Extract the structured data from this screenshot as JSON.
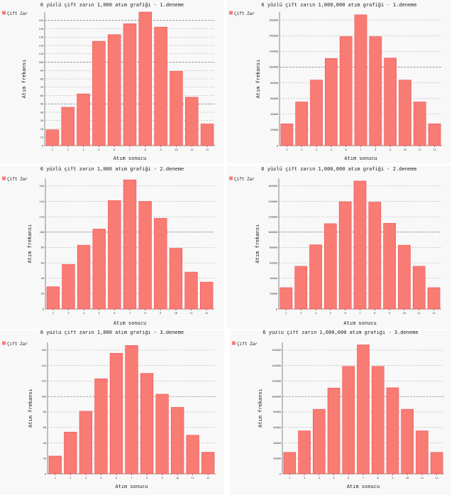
{
  "colors": {
    "bar": "#f87b74",
    "bar_border": "#f04f4f",
    "panel_bg": "#f8f8f8"
  },
  "chart_data": [
    {
      "type": "bar",
      "title": "6 yüzlü çift zarın 1,000 atım grafiği - 1.deneme",
      "xlabel": "Atım sonucu",
      "ylabel": "Atım frekansı",
      "legend": "Çift Zar",
      "legend_position": "top-left",
      "categories": [
        "2",
        "3",
        "4",
        "5",
        "6",
        "7",
        "8",
        "9",
        "10",
        "11",
        "12"
      ],
      "values": [
        19,
        46,
        62,
        125,
        133,
        146,
        160,
        142,
        89,
        58,
        26
      ],
      "ylim": [
        0,
        160
      ],
      "yticks": [
        0,
        10,
        20,
        30,
        40,
        50,
        60,
        70,
        80,
        90,
        100,
        110,
        120,
        130,
        140,
        150
      ],
      "ytick_labels": [
        "0",
        "10",
        "20",
        "30",
        "40",
        "50",
        "60",
        "70",
        "80",
        "90",
        "100",
        "110",
        "120",
        "130",
        "140",
        "150"
      ],
      "major_tick": 50,
      "grid": true
    },
    {
      "type": "bar",
      "title": "6 yüzlü çift zarın 1,000,000 atım grafiği - 1.deneme",
      "xlabel": "Atım sonucu",
      "ylabel": "Atım frekansı",
      "legend": "Çift Zar",
      "legend_position": "top-left",
      "categories": [
        "2",
        "3",
        "4",
        "5",
        "6",
        "7",
        "8",
        "9",
        "10",
        "11",
        "12"
      ],
      "values": [
        27800,
        55600,
        83500,
        111000,
        138800,
        166500,
        138800,
        111500,
        83500,
        55600,
        27800
      ],
      "ylim": [
        0,
        170000
      ],
      "yticks": [
        0,
        20000,
        40000,
        60000,
        80000,
        100000,
        120000,
        140000,
        160000
      ],
      "ytick_labels": [
        "0",
        "20000",
        "40000",
        "60000",
        "80000",
        "100000",
        "120000",
        "140000",
        "160000"
      ],
      "major_tick": 100000,
      "grid": true
    },
    {
      "type": "bar",
      "title": "6 yüzlü çift zarın 1,000 atım grafiği - 2.deneme",
      "xlabel": "Atım sonucu",
      "ylabel": "Atım frekansı",
      "legend": "Çift Zar",
      "legend_position": "top-left",
      "categories": [
        "2",
        "3",
        "4",
        "5",
        "6",
        "7",
        "8",
        "9",
        "10",
        "11",
        "12"
      ],
      "values": [
        29,
        58,
        83,
        104,
        141,
        168,
        140,
        118,
        79,
        48,
        35
      ],
      "ylim": [
        0,
        170
      ],
      "yticks": [
        0,
        20,
        40,
        60,
        80,
        100,
        120,
        140,
        160
      ],
      "ytick_labels": [
        "0",
        "20",
        "40",
        "60",
        "80",
        "100",
        "120",
        "140",
        "160"
      ],
      "major_tick": 100,
      "grid": true
    },
    {
      "type": "bar",
      "title": "6 yüzlü çift zarın 1,000,000 atım grafiği - 2.deneme",
      "xlabel": "Atım sonucu",
      "ylabel": "Atım frekansı",
      "legend": "Çift Zar",
      "legend_position": "top-left",
      "categories": [
        "2",
        "3",
        "4",
        "5",
        "6",
        "7",
        "8",
        "9",
        "10",
        "11",
        "12"
      ],
      "values": [
        27800,
        55600,
        83500,
        111000,
        139500,
        166500,
        139000,
        111500,
        83000,
        55600,
        27800
      ],
      "ylim": [
        0,
        170000
      ],
      "yticks": [
        0,
        20000,
        40000,
        60000,
        80000,
        100000,
        120000,
        140000,
        160000
      ],
      "ytick_labels": [
        "0",
        "20000",
        "40000",
        "60000",
        "80000",
        "100000",
        "120000",
        "140000",
        "160000"
      ],
      "major_tick": 100000,
      "grid": true
    },
    {
      "type": "bar",
      "title": "6 yüzlü çift zarın 1,000 atım grafiği - 3.deneme",
      "xlabel": "Atım sonucu",
      "ylabel": "Atım frekansı",
      "legend": "Çift Zar",
      "legend_position": "top-left",
      "categories": [
        "2",
        "3",
        "4",
        "5",
        "6",
        "7",
        "8",
        "9",
        "10",
        "11",
        "12"
      ],
      "values": [
        23,
        54,
        81,
        123,
        156,
        166,
        130,
        103,
        86,
        50,
        28
      ],
      "ylim": [
        0,
        170
      ],
      "yticks": [
        0,
        20,
        40,
        60,
        80,
        100,
        120,
        140,
        160
      ],
      "ytick_labels": [
        "0",
        "20",
        "40",
        "60",
        "80",
        "100",
        "120",
        "140",
        "160"
      ],
      "major_tick": 100,
      "grid": true
    },
    {
      "type": "bar",
      "title": "6 yüzlü çift zarın 1,000,000 atım grafiği - 3.deneme",
      "xlabel": "Atım sonucu",
      "ylabel": "Atım frekansı",
      "legend": "Çift Zar",
      "legend_position": "top-left",
      "categories": [
        "2",
        "3",
        "4",
        "5",
        "6",
        "7",
        "8",
        "9",
        "10",
        "11",
        "12"
      ],
      "values": [
        27800,
        55600,
        83500,
        111000,
        139000,
        166800,
        139000,
        111300,
        83500,
        55600,
        27800
      ],
      "ylim": [
        0,
        170000
      ],
      "yticks": [
        0,
        20000,
        40000,
        60000,
        80000,
        100000,
        120000,
        140000,
        160000
      ],
      "ytick_labels": [
        "0",
        "20000",
        "40000",
        "60000",
        "80000",
        "100000",
        "120000",
        "140000",
        "160000"
      ],
      "major_tick": 100000,
      "grid": true
    }
  ]
}
